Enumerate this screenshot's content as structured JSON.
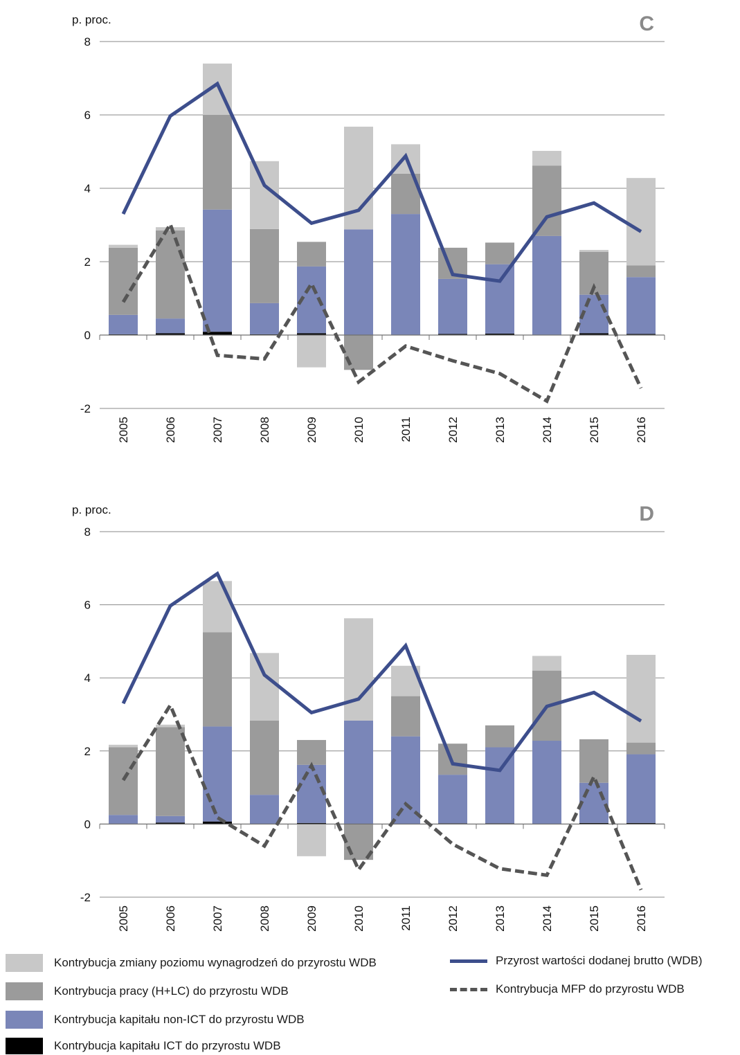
{
  "chart_data": [
    {
      "type": "bar",
      "panel_label": "C",
      "ylabel": "p. proc.",
      "ylim": [
        -2,
        8
      ],
      "yticks": [
        -2,
        0,
        2,
        4,
        6,
        8
      ],
      "categories": [
        "2005",
        "2006",
        "2007",
        "2008",
        "2009",
        "2010",
        "2011",
        "2012",
        "2013",
        "2014",
        "2015",
        "2016"
      ],
      "series": [
        {
          "key": "ict",
          "name": "Kontrybucja kapitału ICT do przyrostu WDB",
          "kind": "bar",
          "color": "#000000",
          "values": [
            0.02,
            0.05,
            0.09,
            0.02,
            0.05,
            0.0,
            0.0,
            0.03,
            0.04,
            0.0,
            0.05,
            0.03
          ]
        },
        {
          "key": "nonict",
          "name": "Kontrybucja kapitału non-ICT do przyrostu WDB",
          "kind": "bar",
          "color": "#7a86b8",
          "values": [
            0.53,
            0.4,
            3.33,
            0.85,
            1.82,
            2.88,
            3.3,
            1.5,
            1.89,
            2.7,
            1.05,
            1.55
          ]
        },
        {
          "key": "labour",
          "name": "Kontrybucja pracy (H+LC) do przyrostu WDB",
          "kind": "bar",
          "color": "#9b9b9b",
          "values": [
            1.83,
            2.4,
            2.58,
            2.02,
            0.67,
            -0.95,
            1.1,
            0.85,
            0.59,
            1.92,
            1.17,
            0.32
          ]
        },
        {
          "key": "wage",
          "name": "Kontrybucja zmiany poziomu wynagrodzeń do przyrostu WDB",
          "kind": "bar",
          "color": "#c8c8c8",
          "values": [
            0.08,
            0.09,
            1.4,
            1.85,
            -0.88,
            2.8,
            0.8,
            0.0,
            0.0,
            0.4,
            0.05,
            2.38
          ]
        },
        {
          "key": "gva",
          "name": "Przyrost wartości dodanej brutto (WDB)",
          "kind": "line",
          "color": "#3d4e8c",
          "values": [
            3.3,
            5.97,
            6.85,
            4.08,
            3.05,
            3.4,
            4.88,
            1.65,
            1.47,
            3.22,
            3.6,
            2.82
          ]
        },
        {
          "key": "mfp",
          "name": "Kontrybucja MFP do przyrostu WDB",
          "kind": "dashed-line",
          "color": "#555555",
          "values": [
            0.9,
            3.02,
            -0.55,
            -0.65,
            1.4,
            -1.28,
            -0.3,
            -0.7,
            -1.05,
            -1.8,
            1.3,
            -1.45
          ]
        }
      ]
    },
    {
      "type": "bar",
      "panel_label": "D",
      "ylabel": "p. proc.",
      "ylim": [
        -2,
        8
      ],
      "yticks": [
        -2,
        0,
        2,
        4,
        6,
        8
      ],
      "categories": [
        "2005",
        "2006",
        "2007",
        "2008",
        "2009",
        "2010",
        "2011",
        "2012",
        "2013",
        "2014",
        "2015",
        "2016"
      ],
      "series": [
        {
          "key": "ict",
          "name": "Kontrybucja kapitału ICT do przyrostu WDB",
          "kind": "bar",
          "color": "#000000",
          "values": [
            0.01,
            0.04,
            0.07,
            0.0,
            0.03,
            0.0,
            0.0,
            0.02,
            0.02,
            0.0,
            0.03,
            0.03
          ]
        },
        {
          "key": "nonict",
          "name": "Kontrybucja kapitału non-ICT do przyrostu WDB",
          "kind": "bar",
          "color": "#7a86b8",
          "values": [
            0.24,
            0.18,
            2.6,
            0.8,
            1.59,
            2.83,
            2.4,
            1.33,
            2.08,
            2.28,
            1.1,
            1.88
          ]
        },
        {
          "key": "labour",
          "name": "Kontrybucja pracy (H+LC) do przyrostu WDB",
          "kind": "bar",
          "color": "#9b9b9b",
          "values": [
            1.85,
            2.43,
            2.58,
            2.03,
            0.68,
            -0.98,
            1.1,
            0.85,
            0.6,
            1.92,
            1.19,
            0.32
          ]
        },
        {
          "key": "wage",
          "name": "Kontrybucja zmiany poziomu wynagrodzeń do przyrostu WDB",
          "kind": "bar",
          "color": "#c8c8c8",
          "values": [
            0.07,
            0.07,
            1.4,
            1.85,
            -0.88,
            2.8,
            0.83,
            0.0,
            0.0,
            0.4,
            0.0,
            2.4
          ]
        },
        {
          "key": "gva",
          "name": "Przyrost wartości dodanej brutto (WDB)",
          "kind": "line",
          "color": "#3d4e8c",
          "values": [
            3.3,
            5.97,
            6.85,
            4.08,
            3.05,
            3.42,
            4.88,
            1.65,
            1.47,
            3.22,
            3.6,
            2.82
          ]
        },
        {
          "key": "mfp",
          "name": "Kontrybucja MFP do przyrostu WDB",
          "kind": "dashed-line",
          "color": "#555555",
          "values": [
            1.2,
            3.25,
            0.18,
            -0.6,
            1.6,
            -1.25,
            0.55,
            -0.55,
            -1.22,
            -1.4,
            1.3,
            -1.8
          ]
        }
      ]
    }
  ],
  "legend": {
    "wage": "Kontrybucja zmiany poziomu wynagrodzeń do przyrostu WDB",
    "labour": "Kontrybucja pracy (H+LC) do przyrostu WDB",
    "nonict": "Kontrybucja kapitału non-ICT do przyrostu WDB",
    "ict": "Kontrybucja kapitału ICT do przyrostu WDB",
    "gva": "Przyrost wartości dodanej brutto (WDB)",
    "mfp": "Kontrybucja MFP do przyrostu WDB"
  },
  "colors": {
    "wage": "#c8c8c8",
    "labour": "#9b9b9b",
    "nonict": "#7a86b8",
    "ict": "#000000",
    "gva": "#3d4e8c",
    "mfp": "#555555"
  }
}
